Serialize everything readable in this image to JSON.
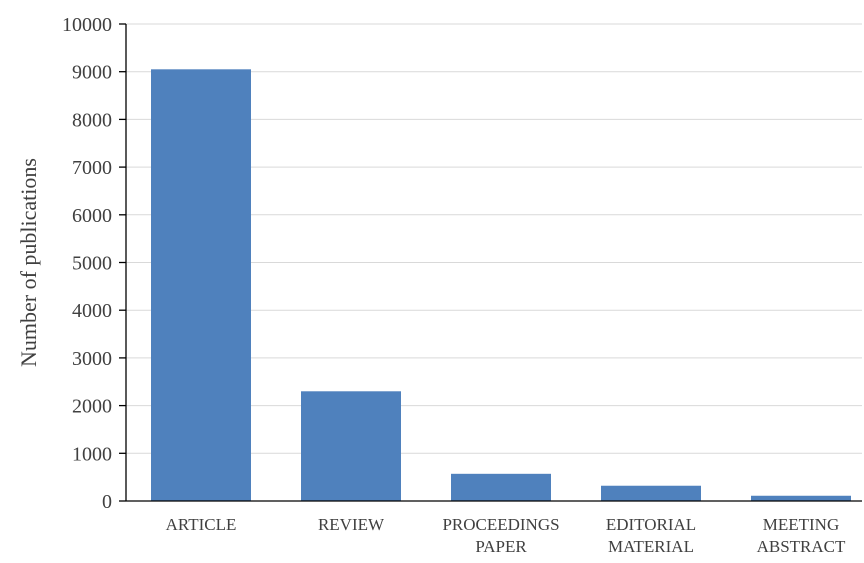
{
  "chart_data": {
    "type": "bar",
    "title": "",
    "xlabel": "",
    "ylabel": "Number of publications",
    "categories": [
      [
        "ARTICLE"
      ],
      [
        "REVIEW"
      ],
      [
        "PROCEEDINGS",
        "PAPER"
      ],
      [
        "EDITORIAL",
        "MATERIAL"
      ],
      [
        "MEETING",
        "ABSTRACT"
      ]
    ],
    "values": [
      9050,
      2300,
      570,
      320,
      110
    ],
    "ylim": [
      0,
      10000
    ],
    "yticks": [
      "0",
      "1000",
      "2000",
      "3000",
      "4000",
      "5000",
      "6000",
      "7000",
      "8000",
      "9000",
      "10000"
    ],
    "grid": true,
    "legend": "none",
    "bar_color": "#4f81bd"
  }
}
